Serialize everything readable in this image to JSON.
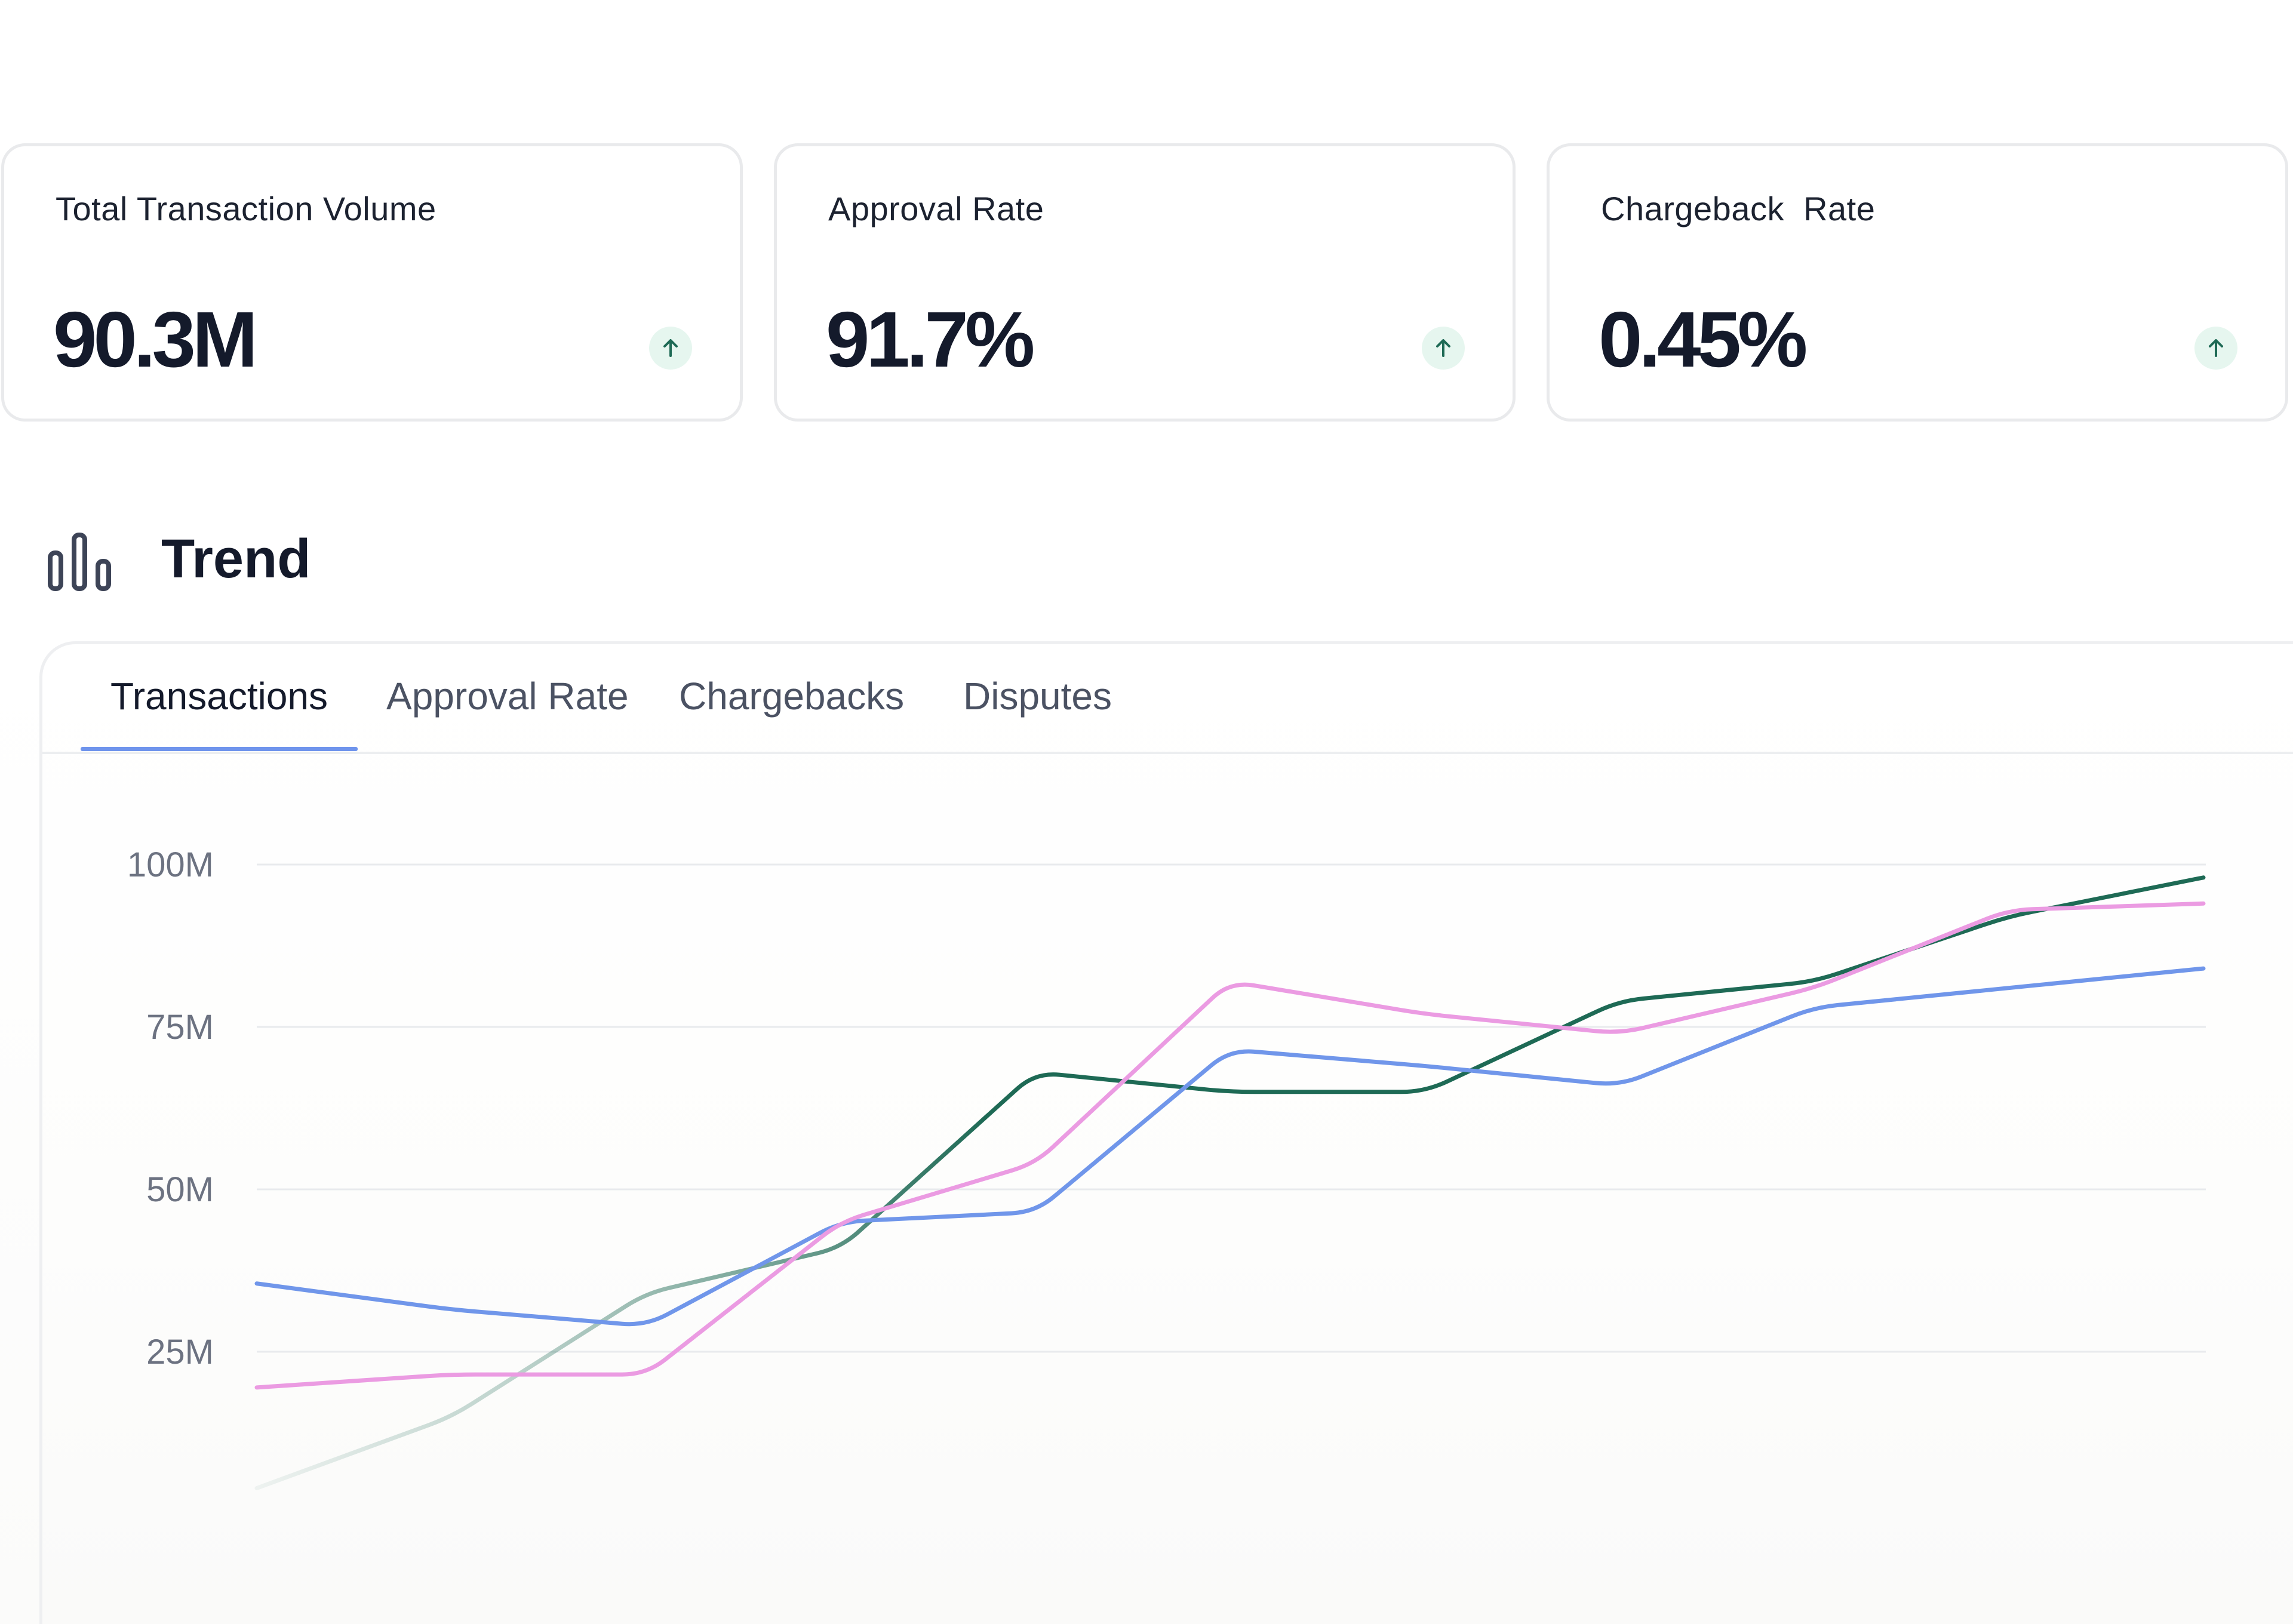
{
  "kpis": [
    {
      "label": "Total Transaction Volume",
      "value": "90.3M",
      "trend": "up",
      "trend_icon": "arrow-up-icon"
    },
    {
      "label": "Approval Rate",
      "value": "91.7%",
      "trend": "up",
      "trend_icon": "arrow-up-icon"
    },
    {
      "label": "Chargeback  Rate",
      "value": "0.45%",
      "trend": "up",
      "trend_icon": "arrow-up-icon"
    }
  ],
  "trend": {
    "title": "Trend",
    "icon": "bar-chart-icon"
  },
  "tabs": [
    {
      "label": "Transactions",
      "active": true
    },
    {
      "label": "Approval Rate",
      "active": false
    },
    {
      "label": "Chargebacks",
      "active": false
    },
    {
      "label": "Disputes",
      "active": false
    }
  ],
  "colors": {
    "series_green": "#1e6a55",
    "series_blue": "#7096ea",
    "series_pink": "#eb9be2",
    "tab_accent": "#6f94ec",
    "trend_badge_bg": "#e6f6ef",
    "trend_arrow": "#1e6a55"
  },
  "chart_data": {
    "type": "line",
    "y_ticks": [
      "100M",
      "75M",
      "50M",
      "25M"
    ],
    "y_tick_values": [
      100,
      75,
      50,
      25
    ],
    "ylim": [
      2,
      118
    ],
    "x": [
      0,
      1,
      2,
      3,
      4,
      5,
      6,
      7,
      8,
      9,
      10
    ],
    "xlim": [
      0,
      10
    ],
    "grid": true,
    "series": [
      {
        "values": [
          4,
          15,
          34,
          41,
          68,
          65,
          65,
          79,
          82,
          92,
          98
        ],
        "color": "#1e6a55"
      },
      {
        "values": [
          35.5,
          31.5,
          29,
          45,
          46.5,
          71.5,
          69,
          66,
          78,
          81,
          84
        ],
        "color": "#7096ea"
      },
      {
        "values": [
          19.5,
          21.5,
          21.5,
          45,
          54,
          82,
          77,
          74,
          81,
          93,
          94
        ],
        "color": "#eb9be2"
      }
    ]
  }
}
